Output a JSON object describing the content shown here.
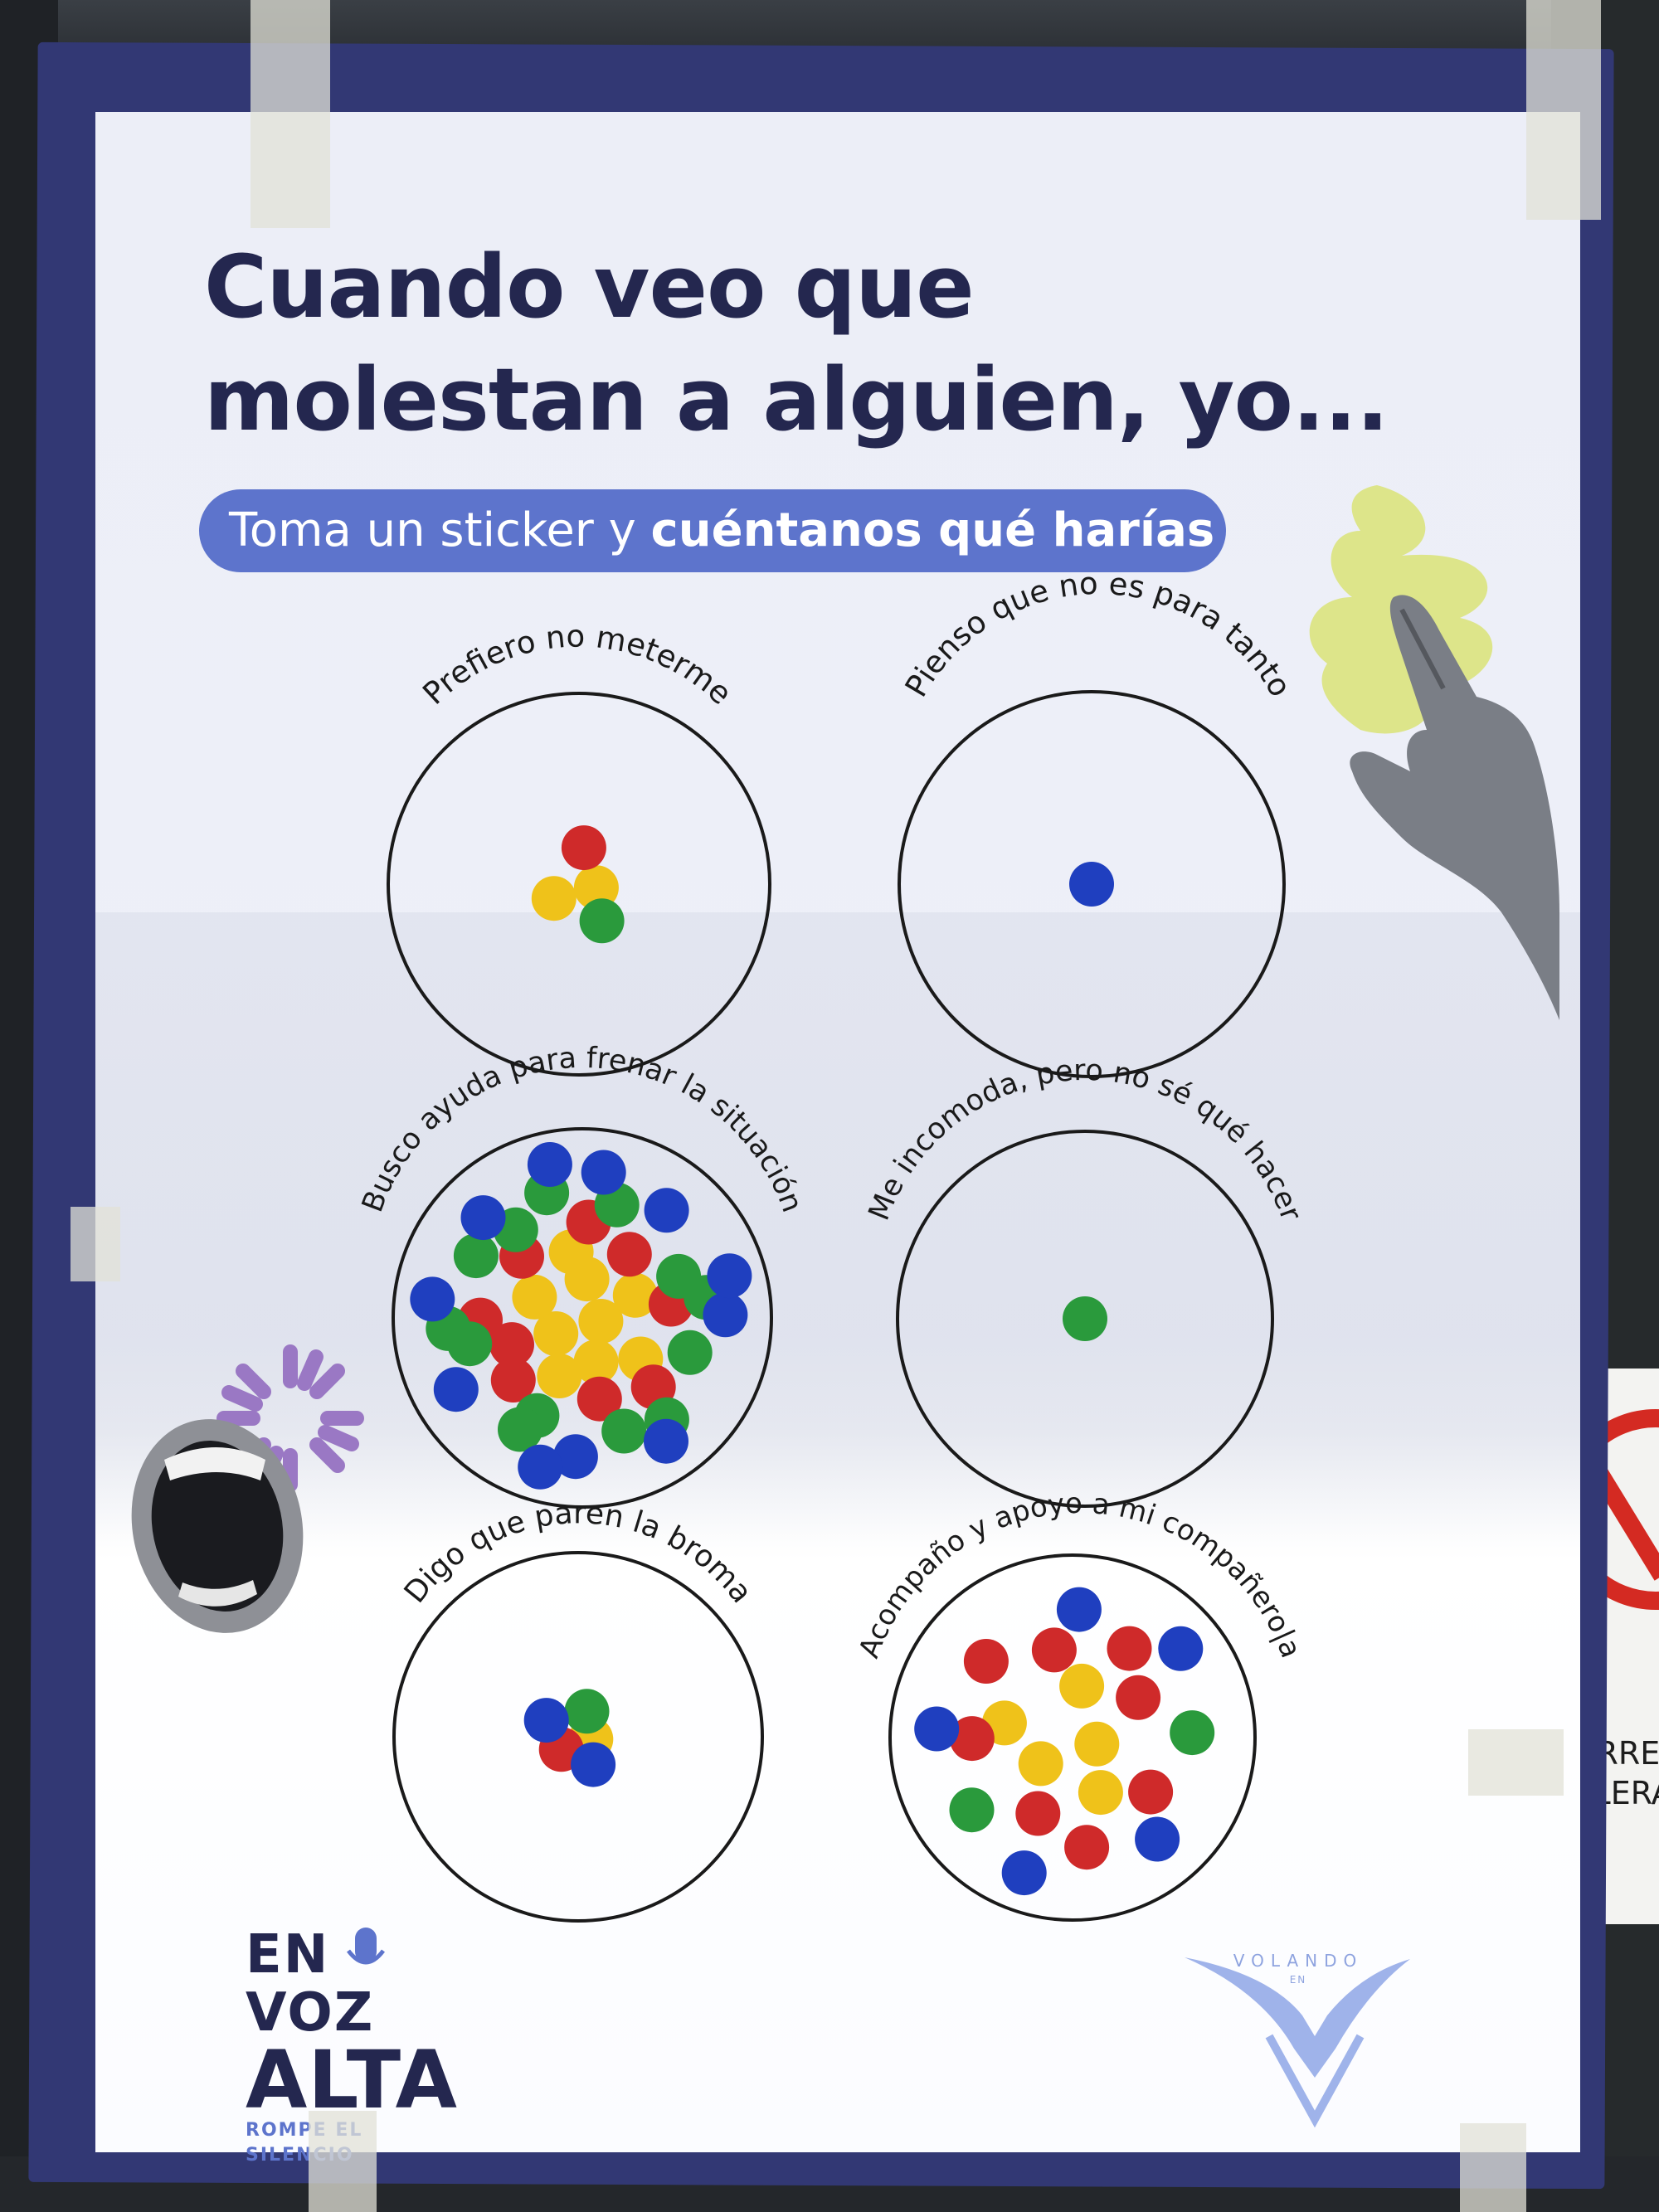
{
  "poster": {
    "title_line1": "Cuando veo que",
    "title_line2": "molestan a alguien, yo...",
    "subtitle_regular": "Toma un sticker y ",
    "subtitle_bold": "cuéntanos qué harías",
    "colors": {
      "navy": "#24274f",
      "frame": "#323874",
      "pill": "#5d74cc",
      "sticker_yellow": "#efc21a",
      "sticker_red": "#cf2a2a",
      "sticker_green": "#2a9a3c",
      "sticker_blue": "#1f3fbf"
    },
    "options": [
      {
        "label": "Prefiero no meterme",
        "stickers": {
          "yellow": 2,
          "red": 1,
          "green": 1,
          "blue": 0
        }
      },
      {
        "label": "Pienso que no es para tanto",
        "stickers": {
          "yellow": 0,
          "red": 0,
          "green": 0,
          "blue": 1
        }
      },
      {
        "label": "Busco ayuda para  frenar la situación",
        "stickers": {
          "yellow": 9,
          "red": 9,
          "green": 13,
          "blue": 11
        }
      },
      {
        "label": "Me incomoda, pero no sé qué hacer",
        "stickers": {
          "yellow": 0,
          "red": 0,
          "green": 1,
          "blue": 0
        }
      },
      {
        "label": "Digo que paren la broma",
        "stickers": {
          "yellow": 1,
          "red": 1,
          "green": 1,
          "blue": 2
        }
      },
      {
        "label": "Acompaño y apoyo a mi compañero|a",
        "stickers": {
          "yellow": 5,
          "red": 8,
          "green": 2,
          "blue": 5
        }
      }
    ],
    "logos": {
      "envoz_line1": "EN VOZ",
      "envoz_line2": "ALTA",
      "envoz_tagline": "ROMPE EL SILENCIO",
      "volando_line1": "VOLANDO",
      "volando_line2": "EN"
    },
    "decor_icons": [
      "pointing-hand-icon",
      "screaming-mouth-icon",
      "burst-icon",
      "squiggle-icon"
    ]
  },
  "background": {
    "sign_text_1": "CORRER",
    "sign_text_2": "CALERA"
  }
}
